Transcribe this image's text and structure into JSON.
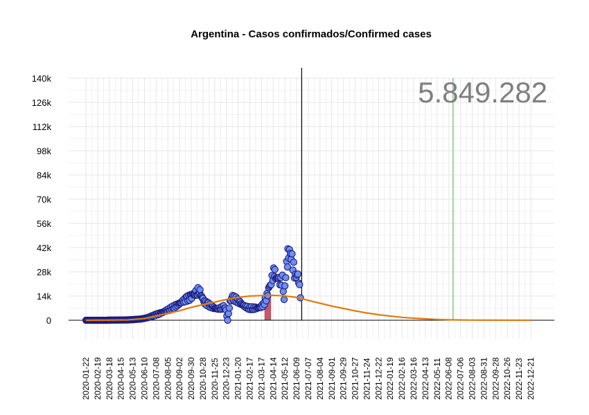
{
  "chart_data": {
    "type": "scatter",
    "title": "Argentina - Casos confirmados/Confirmed cases",
    "xlabel": "",
    "ylabel": "",
    "x_range": [
      "2020-01-22",
      "2022-12-31"
    ],
    "ylim": [
      -10000,
      140000
    ],
    "y_ticks": [
      0,
      14000,
      28000,
      42000,
      56000,
      70000,
      84000,
      98000,
      112000,
      126000,
      140000
    ],
    "y_tick_labels": [
      "0",
      "14k",
      "28k",
      "42k",
      "56k",
      "70k",
      "84k",
      "98k",
      "112k",
      "126k",
      "140k"
    ],
    "x_tick_labels": [
      "2020-01-22",
      "2020-02-19",
      "2020-03-18",
      "2020-04-15",
      "2020-05-13",
      "2020-06-10",
      "2020-07-08",
      "2020-08-05",
      "2020-09-02",
      "2020-09-30",
      "2020-10-28",
      "2020-11-25",
      "2020-12-23",
      "2021-01-20",
      "2021-02-17",
      "2021-03-17",
      "2021-04-14",
      "2021-05-12",
      "2021-06-09",
      "2021-07-07",
      "2021-08-04",
      "2021-09-01",
      "2021-09-29",
      "2021-10-27",
      "2021-11-24",
      "2021-12-22",
      "2022-01-19",
      "2022-02-16",
      "2022-03-16",
      "2022-04-13",
      "2022-05-11",
      "2022-06-08",
      "2022-07-06",
      "2022-08-03",
      "2022-08-31",
      "2022-09-28",
      "2022-10-26",
      "2022-11-23",
      "2022-12-21"
    ],
    "total_annotation": "5.849.282",
    "annotation_date": "2022-06-18",
    "current_date_line": "2021-06-21",
    "highlight_range": [
      "2021-03-25",
      "2021-04-08"
    ],
    "highlight_value": 14000,
    "grid": true,
    "legend": "none",
    "daily_cases": [
      {
        "date": "2020-03-15",
        "y": 60
      },
      {
        "date": "2020-04-01",
        "y": 100
      },
      {
        "date": "2020-04-15",
        "y": 150
      },
      {
        "date": "2020-05-01",
        "y": 200
      },
      {
        "date": "2020-05-15",
        "y": 400
      },
      {
        "date": "2020-06-01",
        "y": 700
      },
      {
        "date": "2020-06-15",
        "y": 1300
      },
      {
        "date": "2020-07-01",
        "y": 2600
      },
      {
        "date": "2020-07-10",
        "y": 3400
      },
      {
        "date": "2020-07-20",
        "y": 4200
      },
      {
        "date": "2020-08-01",
        "y": 5500
      },
      {
        "date": "2020-08-10",
        "y": 6500
      },
      {
        "date": "2020-08-20",
        "y": 7800
      },
      {
        "date": "2020-09-01",
        "y": 9500
      },
      {
        "date": "2020-09-10",
        "y": 11000
      },
      {
        "date": "2020-09-20",
        "y": 12500
      },
      {
        "date": "2020-09-30",
        "y": 13500
      },
      {
        "date": "2020-10-05",
        "y": 14500
      },
      {
        "date": "2020-10-10",
        "y": 15500
      },
      {
        "date": "2020-10-15",
        "y": 16500
      },
      {
        "date": "2020-10-20",
        "y": 17500
      },
      {
        "date": "2020-10-25",
        "y": 14000
      },
      {
        "date": "2020-11-01",
        "y": 10500
      },
      {
        "date": "2020-11-10",
        "y": 9000
      },
      {
        "date": "2020-11-20",
        "y": 7500
      },
      {
        "date": "2020-12-01",
        "y": 6500
      },
      {
        "date": "2020-12-10",
        "y": 7000
      },
      {
        "date": "2020-12-20",
        "y": 8000
      },
      {
        "date": "2020-12-26",
        "y": 0
      },
      {
        "date": "2021-01-01",
        "y": 11000
      },
      {
        "date": "2021-01-07",
        "y": 13000
      },
      {
        "date": "2021-01-15",
        "y": 12000
      },
      {
        "date": "2021-01-25",
        "y": 10000
      },
      {
        "date": "2021-02-05",
        "y": 8000
      },
      {
        "date": "2021-02-15",
        "y": 7000
      },
      {
        "date": "2021-02-25",
        "y": 7000
      },
      {
        "date": "2021-03-05",
        "y": 7000
      },
      {
        "date": "2021-03-15",
        "y": 7500
      },
      {
        "date": "2021-03-22",
        "y": 9000
      },
      {
        "date": "2021-03-30",
        "y": 14000
      },
      {
        "date": "2021-04-05",
        "y": 19000
      },
      {
        "date": "2021-04-09",
        "y": 22000
      },
      {
        "date": "2021-04-13",
        "y": 26000
      },
      {
        "date": "2021-04-17",
        "y": 28000
      },
      {
        "date": "2021-04-22",
        "y": 25000
      },
      {
        "date": "2021-04-28",
        "y": 23000
      },
      {
        "date": "2021-05-02",
        "y": 22000
      },
      {
        "date": "2021-05-06",
        "y": 24000
      },
      {
        "date": "2021-05-10",
        "y": 12000
      },
      {
        "date": "2021-05-14",
        "y": 27000
      },
      {
        "date": "2021-05-18",
        "y": 35000
      },
      {
        "date": "2021-05-21",
        "y": 39000
      },
      {
        "date": "2021-05-25",
        "y": 38000
      },
      {
        "date": "2021-05-29",
        "y": 35000
      },
      {
        "date": "2021-06-02",
        "y": 30000
      },
      {
        "date": "2021-06-06",
        "y": 25000
      },
      {
        "date": "2021-06-10",
        "y": 27000
      },
      {
        "date": "2021-06-14",
        "y": 24000
      },
      {
        "date": "2021-06-18",
        "y": 13000
      }
    ],
    "trend_curve": [
      {
        "date": "2020-01-22",
        "y": 0
      },
      {
        "date": "2020-05-01",
        "y": 200
      },
      {
        "date": "2020-06-10",
        "y": 1000
      },
      {
        "date": "2020-07-08",
        "y": 2500
      },
      {
        "date": "2020-08-05",
        "y": 4000
      },
      {
        "date": "2020-09-02",
        "y": 5500
      },
      {
        "date": "2020-09-30",
        "y": 7500
      },
      {
        "date": "2020-10-28",
        "y": 9000
      },
      {
        "date": "2020-11-25",
        "y": 10500
      },
      {
        "date": "2020-12-23",
        "y": 12000
      },
      {
        "date": "2021-01-20",
        "y": 13200
      },
      {
        "date": "2021-02-17",
        "y": 14000
      },
      {
        "date": "2021-03-17",
        "y": 14300
      },
      {
        "date": "2021-04-14",
        "y": 14400
      },
      {
        "date": "2021-05-12",
        "y": 14100
      },
      {
        "date": "2021-06-09",
        "y": 13200
      },
      {
        "date": "2021-07-07",
        "y": 11500
      },
      {
        "date": "2021-08-04",
        "y": 9800
      },
      {
        "date": "2021-09-01",
        "y": 8200
      },
      {
        "date": "2021-09-29",
        "y": 6800
      },
      {
        "date": "2021-10-27",
        "y": 5400
      },
      {
        "date": "2021-11-24",
        "y": 4200
      },
      {
        "date": "2021-12-22",
        "y": 3200
      },
      {
        "date": "2022-01-19",
        "y": 2400
      },
      {
        "date": "2022-02-16",
        "y": 1700
      },
      {
        "date": "2022-03-16",
        "y": 1200
      },
      {
        "date": "2022-04-13",
        "y": 800
      },
      {
        "date": "2022-05-11",
        "y": 500
      },
      {
        "date": "2022-06-08",
        "y": 300
      },
      {
        "date": "2022-07-06",
        "y": 180
      },
      {
        "date": "2022-08-03",
        "y": 100
      },
      {
        "date": "2022-09-28",
        "y": 30
      },
      {
        "date": "2022-12-21",
        "y": 0
      }
    ],
    "colors": {
      "points_fill": "#6f8ff0",
      "points_stroke": "#1a1a7a",
      "trend": "#e07b10",
      "highlight": "#b84050",
      "annotation_line": "#9fd09f",
      "grid": "#e6e6e6",
      "axis": "#000000",
      "annotation_text": "#7f7f7f"
    }
  }
}
